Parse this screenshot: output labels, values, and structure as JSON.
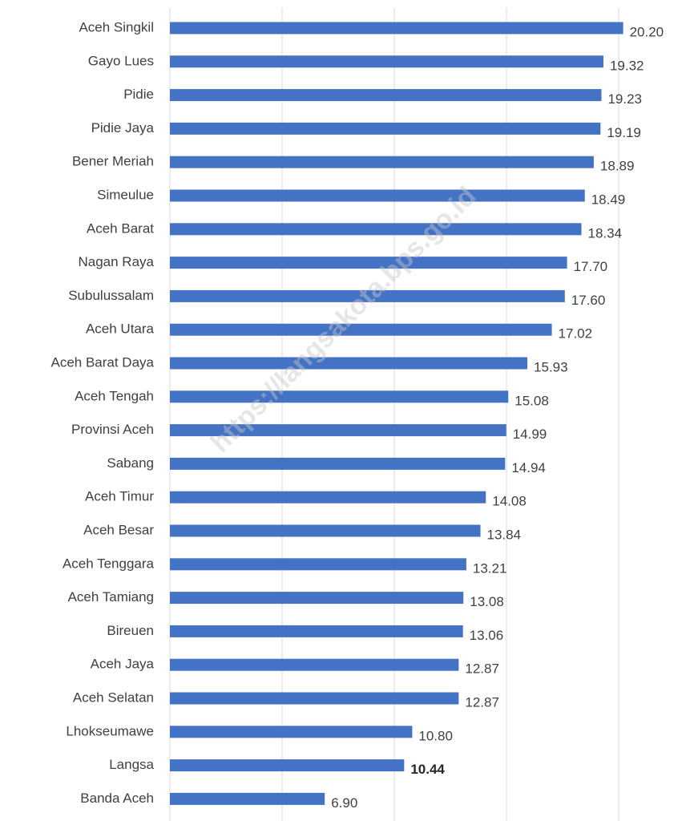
{
  "chart_data": {
    "type": "barh",
    "categories": [
      "Aceh Singkil",
      "Gayo Lues",
      "Pidie",
      "Pidie Jaya",
      "Bener Meriah",
      "Simeulue",
      "Aceh Barat",
      "Nagan Raya",
      "Subulussalam",
      "Aceh Utara",
      "Aceh Barat Daya",
      "Aceh Tengah",
      "Provinsi Aceh",
      "Sabang",
      "Aceh Timur",
      "Aceh Besar",
      "Aceh Tenggara",
      "Aceh Tamiang",
      "Bireuen",
      "Aceh Jaya",
      "Aceh Selatan",
      "Lhokseumawe",
      "Langsa",
      "Banda Aceh"
    ],
    "values": [
      20.2,
      19.32,
      19.23,
      19.19,
      18.89,
      18.49,
      18.34,
      17.7,
      17.6,
      17.02,
      15.93,
      15.08,
      14.99,
      14.94,
      14.08,
      13.84,
      13.21,
      13.08,
      13.06,
      12.87,
      12.87,
      10.8,
      10.44,
      6.9
    ],
    "value_labels": [
      "20.20",
      "19.32",
      "19.23",
      "19.19",
      "18.89",
      "18.49",
      "18.34",
      "17.70",
      "17.60",
      "17.02",
      "15.93",
      "15.08",
      "14.99",
      "14.94",
      "14.08",
      "13.84",
      "13.21",
      "13.08",
      "13.06",
      "12.87",
      "12.87",
      "10.80",
      "10.44",
      "6.90"
    ],
    "color": "#4472c4",
    "xlim": [
      0,
      22.5
    ],
    "xticks": [
      0,
      5,
      10,
      15,
      20
    ],
    "xtick_labels": false,
    "grid": true,
    "highlight_category": "Langsa",
    "watermark": "https://langsakota.bps.go.id"
  }
}
